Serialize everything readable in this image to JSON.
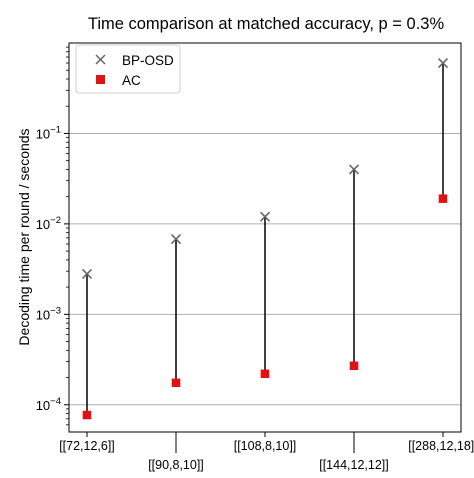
{
  "chart_data": {
    "type": "scatter",
    "title": "Time comparison at matched accuracy, p = 0.3%",
    "xlabel": "",
    "ylabel": "Decoding time per round / seconds",
    "yscale": "log",
    "ylim": [
      5e-05,
      1.0
    ],
    "grid": "horizontal, at major y ticks",
    "legend_position": "top-left",
    "categories": [
      "[[72,12,6]]",
      "[[90,8,10]]",
      "[[108,8,10]]",
      "[[144,12,12]]",
      "[[288,12,18]]"
    ],
    "category_label_rows": [
      0,
      1,
      0,
      1,
      0
    ],
    "y_ticks": [
      {
        "value": 0.0001,
        "base": "10",
        "exp": "−4"
      },
      {
        "value": 0.001,
        "base": "10",
        "exp": "−3"
      },
      {
        "value": 0.01,
        "base": "10",
        "exp": "−2"
      },
      {
        "value": 0.1,
        "base": "10",
        "exp": "−1"
      }
    ],
    "series": [
      {
        "name": "BP-OSD",
        "marker": "x",
        "color": "#666666",
        "values": [
          0.0028,
          0.0068,
          0.012,
          0.04,
          0.6
        ]
      },
      {
        "name": "AC",
        "marker": "square",
        "color": "#e8100f",
        "values": [
          7.7e-05,
          0.000175,
          0.00022,
          0.00027,
          0.019
        ]
      }
    ],
    "connector_color": "#000000"
  }
}
